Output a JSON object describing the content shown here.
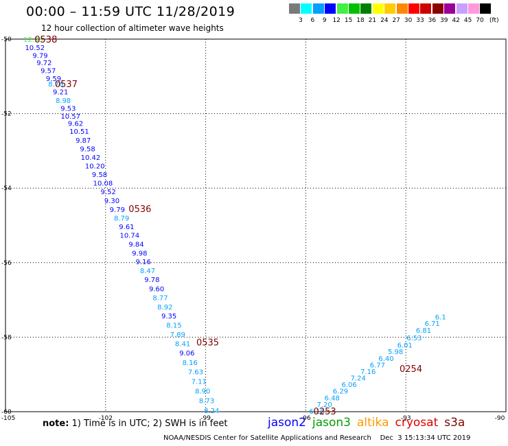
{
  "header": {
    "title": "00:00 – 11:59 UTC 11/28/2019",
    "subtitle": "12 hour collection of altimeter wave heights"
  },
  "legend": {
    "unit": "(ft)",
    "bins": [
      {
        "label": "3",
        "color": "#7a7a7a"
      },
      {
        "label": "6",
        "color": "#00ffff"
      },
      {
        "label": "9",
        "color": "#00a0ff"
      },
      {
        "label": "12",
        "color": "#0000ff"
      },
      {
        "label": "15",
        "color": "#44ee44"
      },
      {
        "label": "18",
        "color": "#00c000"
      },
      {
        "label": "21",
        "color": "#008000"
      },
      {
        "label": "24",
        "color": "#ffff00"
      },
      {
        "label": "27",
        "color": "#ffcc00"
      },
      {
        "label": "30",
        "color": "#ff8800"
      },
      {
        "label": "33",
        "color": "#ff0000"
      },
      {
        "label": "36",
        "color": "#cc0000"
      },
      {
        "label": "39",
        "color": "#8b0000"
      },
      {
        "label": "42",
        "color": "#9b009b"
      },
      {
        "label": "45",
        "color": "#c8a0ff"
      },
      {
        "label": "70",
        "color": "#ff99dd"
      },
      {
        "label": "",
        "color": "#000000"
      }
    ]
  },
  "chart_data": {
    "type": "scatter",
    "xlim": [
      -105,
      -90
    ],
    "ylim": [
      -60,
      -50
    ],
    "x_ticks": [
      "-105",
      "-102",
      "-99",
      "-96",
      "-93",
      "-90"
    ],
    "y_ticks": [
      "-50",
      "-52",
      "-54",
      "-56",
      "-58",
      "-60"
    ],
    "grid": true,
    "value_colors": {
      "low": "#00a0ff",
      "mid": "#0000ff",
      "high": "#44ee44"
    },
    "points": [
      {
        "x": -104.17,
        "y": -50.0,
        "v": "12.93"
      },
      {
        "x": -104.12,
        "y": -50.22,
        "v": "10.52"
      },
      {
        "x": -103.96,
        "y": -50.43,
        "v": "9.79"
      },
      {
        "x": -103.84,
        "y": -50.63,
        "v": "9.72"
      },
      {
        "x": -103.72,
        "y": -50.84,
        "v": "9.57"
      },
      {
        "x": -103.56,
        "y": -51.05,
        "v": "9.59"
      },
      {
        "x": -103.49,
        "y": -51.2,
        "v": "8.76"
      },
      {
        "x": -103.35,
        "y": -51.41,
        "v": "9.21"
      },
      {
        "x": -103.27,
        "y": -51.64,
        "v": "8.98"
      },
      {
        "x": -103.12,
        "y": -51.85,
        "v": "9.53"
      },
      {
        "x": -103.05,
        "y": -52.06,
        "v": "10.57"
      },
      {
        "x": -102.9,
        "y": -52.26,
        "v": "9.62"
      },
      {
        "x": -102.79,
        "y": -52.47,
        "v": "10.51"
      },
      {
        "x": -102.67,
        "y": -52.71,
        "v": "9.87"
      },
      {
        "x": -102.54,
        "y": -52.94,
        "v": "9.58"
      },
      {
        "x": -102.45,
        "y": -53.17,
        "v": "10.42"
      },
      {
        "x": -102.32,
        "y": -53.4,
        "v": "10.20"
      },
      {
        "x": -102.18,
        "y": -53.63,
        "v": "9.58"
      },
      {
        "x": -102.08,
        "y": -53.86,
        "v": "10.08"
      },
      {
        "x": -101.92,
        "y": -54.09,
        "v": "9.52"
      },
      {
        "x": -101.81,
        "y": -54.33,
        "v": "9.30"
      },
      {
        "x": -101.65,
        "y": -54.57,
        "v": "9.79"
      },
      {
        "x": -101.52,
        "y": -54.8,
        "v": "8.79"
      },
      {
        "x": -101.37,
        "y": -55.03,
        "v": "9.61"
      },
      {
        "x": -101.28,
        "y": -55.26,
        "v": "10.74"
      },
      {
        "x": -101.08,
        "y": -55.5,
        "v": "9.84"
      },
      {
        "x": -100.98,
        "y": -55.74,
        "v": "9.98"
      },
      {
        "x": -100.87,
        "y": -55.97,
        "v": "9.16"
      },
      {
        "x": -100.74,
        "y": -56.21,
        "v": "8.47"
      },
      {
        "x": -100.61,
        "y": -56.45,
        "v": "9.78"
      },
      {
        "x": -100.47,
        "y": -56.69,
        "v": "9.60"
      },
      {
        "x": -100.36,
        "y": -56.93,
        "v": "8.77"
      },
      {
        "x": -100.22,
        "y": -57.18,
        "v": "8.92"
      },
      {
        "x": -100.1,
        "y": -57.42,
        "v": "9.35"
      },
      {
        "x": -99.95,
        "y": -57.67,
        "v": "8.15"
      },
      {
        "x": -99.84,
        "y": -57.92,
        "v": "7.89"
      },
      {
        "x": -99.69,
        "y": -58.17,
        "v": "8.41"
      },
      {
        "x": -99.56,
        "y": -58.42,
        "v": "9.06"
      },
      {
        "x": -99.47,
        "y": -58.67,
        "v": "8.16"
      },
      {
        "x": -99.3,
        "y": -58.92,
        "v": "7.63"
      },
      {
        "x": -99.2,
        "y": -59.18,
        "v": "7.11"
      },
      {
        "x": -99.09,
        "y": -59.44,
        "v": "8.90"
      },
      {
        "x": -98.97,
        "y": -59.7,
        "v": "8.73"
      },
      {
        "x": -98.82,
        "y": -59.96,
        "v": "8.24"
      },
      {
        "x": -95.67,
        "y": -59.98,
        "v": "6.10"
      },
      {
        "x": -95.44,
        "y": -59.8,
        "v": "7.20"
      },
      {
        "x": -95.21,
        "y": -59.62,
        "v": "6.48"
      },
      {
        "x": -94.96,
        "y": -59.44,
        "v": "6.29"
      },
      {
        "x": -94.7,
        "y": -59.26,
        "v": "6.06"
      },
      {
        "x": -94.43,
        "y": -59.09,
        "v": "7.24"
      },
      {
        "x": -94.13,
        "y": -58.91,
        "v": "7.16"
      },
      {
        "x": -93.85,
        "y": -58.74,
        "v": "6.77"
      },
      {
        "x": -93.59,
        "y": -58.56,
        "v": "6.40"
      },
      {
        "x": -93.31,
        "y": -58.38,
        "v": "5.98"
      },
      {
        "x": -93.03,
        "y": -58.2,
        "v": "6.01"
      },
      {
        "x": -92.75,
        "y": -58.01,
        "v": "6.53"
      },
      {
        "x": -92.47,
        "y": -57.81,
        "v": "6.81"
      },
      {
        "x": -92.21,
        "y": -57.62,
        "v": "6.71"
      },
      {
        "x": -91.96,
        "y": -57.45,
        "v": "6.1"
      }
    ],
    "time_labels": [
      {
        "x": -103.79,
        "y": -50.0,
        "t": "0538",
        "color": "#800000"
      },
      {
        "x": -103.18,
        "y": -51.2,
        "t": "0537",
        "color": "#800000"
      },
      {
        "x": -100.97,
        "y": -54.55,
        "t": "0536",
        "color": "#800000"
      },
      {
        "x": -98.94,
        "y": -58.13,
        "t": "0535",
        "color": "#800000"
      },
      {
        "x": -95.43,
        "y": -59.98,
        "t": "0253",
        "color": "#006600"
      },
      {
        "x": -92.85,
        "y": -58.84,
        "t": "0254",
        "color": "#006600"
      }
    ]
  },
  "footer": {
    "note_label": "note:",
    "note_text": "1) Time is in UTC; 2) SWH is in feet",
    "satellites": [
      {
        "name": "jason2",
        "color": "#0000ff"
      },
      {
        "name": "jason3",
        "color": "#00a000"
      },
      {
        "name": "altika",
        "color": "#ff9900"
      },
      {
        "name": "cryosat",
        "color": "#dd0000"
      },
      {
        "name": "s3a",
        "color": "#800000"
      }
    ],
    "credits": "NOAA/NESDIS Center for Satellite Applications and Research    Dec  3 15:13:34 UTC 2019"
  }
}
